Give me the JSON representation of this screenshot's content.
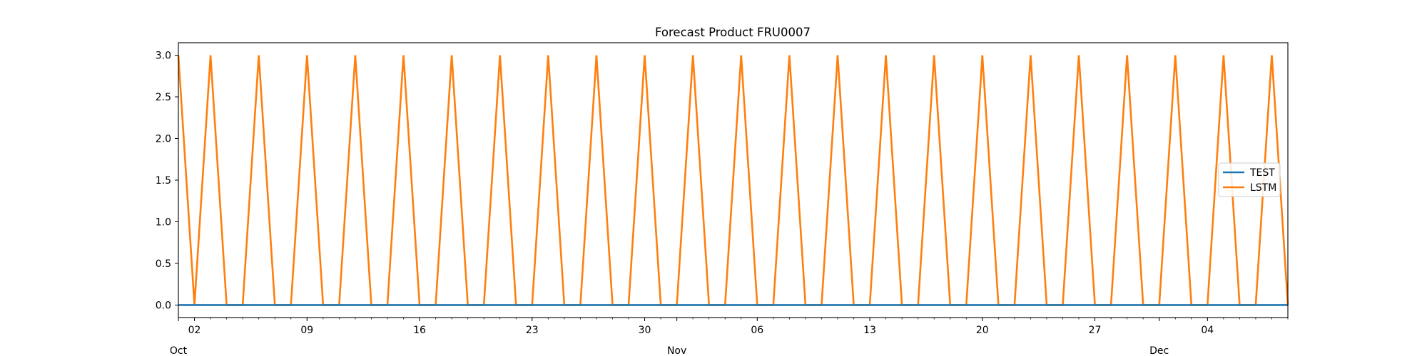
{
  "chart_data": {
    "type": "line",
    "title": "Forecast Product FRU0007",
    "xlabel": "",
    "ylabel": "",
    "x_start": "2023-10-01",
    "x_end": "2023-12-09",
    "ylim": [
      -0.15,
      3.15
    ],
    "yticks": [
      0.0,
      0.5,
      1.0,
      1.5,
      2.0,
      2.5,
      3.0
    ],
    "ytick_labels": [
      "0.0",
      "0.5",
      "1.0",
      "1.5",
      "2.0",
      "2.5",
      "3.0"
    ],
    "xticks_major": [
      {
        "date": "2023-10-02",
        "label": "02"
      },
      {
        "date": "2023-10-09",
        "label": "09"
      },
      {
        "date": "2023-10-16",
        "label": "16"
      },
      {
        "date": "2023-10-23",
        "label": "23"
      },
      {
        "date": "2023-10-30",
        "label": "30"
      },
      {
        "date": "2023-11-06",
        "label": "06"
      },
      {
        "date": "2023-11-13",
        "label": "13"
      },
      {
        "date": "2023-11-20",
        "label": "20"
      },
      {
        "date": "2023-11-27",
        "label": "27"
      },
      {
        "date": "2023-12-04",
        "label": "04"
      }
    ],
    "xticks_months": [
      {
        "date": "2023-10-01",
        "label": "Oct"
      },
      {
        "date": "2023-11-01",
        "label": "Nov"
      },
      {
        "date": "2023-12-01",
        "label": "Dec"
      }
    ],
    "legend_position": "center-right",
    "grid": false,
    "series": [
      {
        "name": "TEST",
        "color": "#1f77b4",
        "points": [
          {
            "x": "2023-10-01",
            "y": 0
          },
          {
            "x": "2023-12-09",
            "y": 0
          }
        ]
      },
      {
        "name": "LSTM",
        "color": "#ff7f0e",
        "points": [
          {
            "x": "2023-10-01",
            "y": 3
          },
          {
            "x": "2023-10-02",
            "y": 0
          },
          {
            "x": "2023-10-03",
            "y": 3
          },
          {
            "x": "2023-10-04",
            "y": 0
          },
          {
            "x": "2023-10-05",
            "y": 0
          },
          {
            "x": "2023-10-06",
            "y": 3
          },
          {
            "x": "2023-10-07",
            "y": 0
          },
          {
            "x": "2023-10-08",
            "y": 0
          },
          {
            "x": "2023-10-09",
            "y": 3
          },
          {
            "x": "2023-10-10",
            "y": 0
          },
          {
            "x": "2023-10-11",
            "y": 0
          },
          {
            "x": "2023-10-12",
            "y": 3
          },
          {
            "x": "2023-10-13",
            "y": 0
          },
          {
            "x": "2023-10-14",
            "y": 0
          },
          {
            "x": "2023-10-15",
            "y": 3
          },
          {
            "x": "2023-10-16",
            "y": 0
          },
          {
            "x": "2023-10-17",
            "y": 0
          },
          {
            "x": "2023-10-18",
            "y": 3
          },
          {
            "x": "2023-10-19",
            "y": 0
          },
          {
            "x": "2023-10-20",
            "y": 0
          },
          {
            "x": "2023-10-21",
            "y": 3
          },
          {
            "x": "2023-10-22",
            "y": 0
          },
          {
            "x": "2023-10-23",
            "y": 0
          },
          {
            "x": "2023-10-24",
            "y": 3
          },
          {
            "x": "2023-10-25",
            "y": 0
          },
          {
            "x": "2023-10-26",
            "y": 0
          },
          {
            "x": "2023-10-27",
            "y": 3
          },
          {
            "x": "2023-10-28",
            "y": 0
          },
          {
            "x": "2023-10-29",
            "y": 0
          },
          {
            "x": "2023-10-30",
            "y": 3
          },
          {
            "x": "2023-10-31",
            "y": 0
          },
          {
            "x": "2023-11-01",
            "y": 0
          },
          {
            "x": "2023-11-02",
            "y": 3
          },
          {
            "x": "2023-11-03",
            "y": 0
          },
          {
            "x": "2023-11-04",
            "y": 0
          },
          {
            "x": "2023-11-05",
            "y": 3
          },
          {
            "x": "2023-11-06",
            "y": 0
          },
          {
            "x": "2023-11-07",
            "y": 0
          },
          {
            "x": "2023-11-08",
            "y": 3
          },
          {
            "x": "2023-11-09",
            "y": 0
          },
          {
            "x": "2023-11-10",
            "y": 0
          },
          {
            "x": "2023-11-11",
            "y": 3
          },
          {
            "x": "2023-11-12",
            "y": 0
          },
          {
            "x": "2023-11-13",
            "y": 0
          },
          {
            "x": "2023-11-14",
            "y": 3
          },
          {
            "x": "2023-11-15",
            "y": 0
          },
          {
            "x": "2023-11-16",
            "y": 0
          },
          {
            "x": "2023-11-17",
            "y": 3
          },
          {
            "x": "2023-11-18",
            "y": 0
          },
          {
            "x": "2023-11-19",
            "y": 0
          },
          {
            "x": "2023-11-20",
            "y": 3
          },
          {
            "x": "2023-11-21",
            "y": 0
          },
          {
            "x": "2023-11-22",
            "y": 0
          },
          {
            "x": "2023-11-23",
            "y": 3
          },
          {
            "x": "2023-11-24",
            "y": 0
          },
          {
            "x": "2023-11-25",
            "y": 0
          },
          {
            "x": "2023-11-26",
            "y": 3
          },
          {
            "x": "2023-11-27",
            "y": 0
          },
          {
            "x": "2023-11-28",
            "y": 0
          },
          {
            "x": "2023-11-29",
            "y": 3
          },
          {
            "x": "2023-11-30",
            "y": 0
          },
          {
            "x": "2023-12-01",
            "y": 0
          },
          {
            "x": "2023-12-02",
            "y": 3
          },
          {
            "x": "2023-12-03",
            "y": 0
          },
          {
            "x": "2023-12-04",
            "y": 0
          },
          {
            "x": "2023-12-05",
            "y": 3
          },
          {
            "x": "2023-12-06",
            "y": 0
          },
          {
            "x": "2023-12-07",
            "y": 0
          },
          {
            "x": "2023-12-08",
            "y": 3
          },
          {
            "x": "2023-12-09",
            "y": 0
          }
        ]
      }
    ]
  }
}
